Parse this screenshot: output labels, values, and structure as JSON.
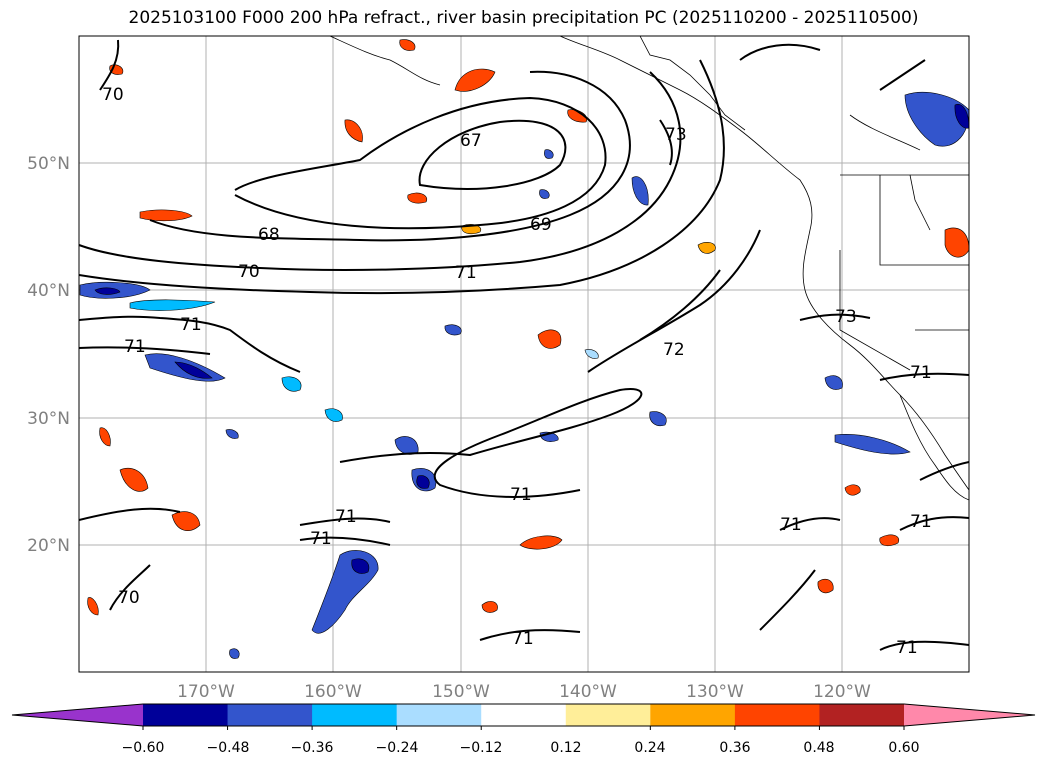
{
  "title": "2025103100 F000 200 hPa refract., river basin precipitation PC (2025110200 - 2025110500)",
  "map": {
    "lat_labels": [
      "50°N",
      "40°N",
      "30°N",
      "20°N"
    ],
    "lon_labels": [
      "170°W",
      "160°W",
      "150°W",
      "140°W",
      "130°W",
      "120°W"
    ],
    "contour_labels": [
      "67",
      "68",
      "69",
      "70",
      "71",
      "71",
      "71",
      "71",
      "72",
      "73",
      "73",
      "71",
      "71",
      "71",
      "71",
      "71",
      "71",
      "70",
      "70",
      "71"
    ]
  },
  "colorbar": {
    "colors": [
      "#9933cc",
      "#000099",
      "#3355cc",
      "#00bbff",
      "#aaddff",
      "#ffffff",
      "#ffee99",
      "#ffa500",
      "#ff4400",
      "#b22222",
      "#ff88aa"
    ],
    "ticks": [
      "−0.60",
      "−0.48",
      "−0.36",
      "−0.24",
      "−0.12",
      "0.12",
      "0.24",
      "0.36",
      "0.48",
      "0.60"
    ]
  }
}
